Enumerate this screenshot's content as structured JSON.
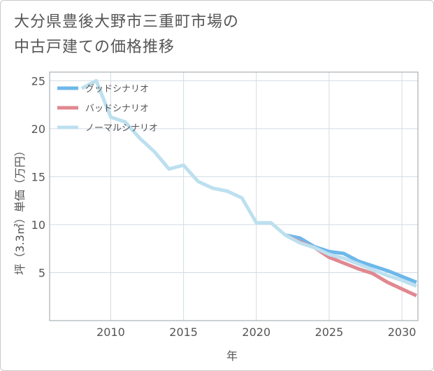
{
  "chart_data": {
    "type": "line",
    "title_lines": [
      "大分県豊後大野市三重町市場の",
      "中古戸建ての価格推移"
    ],
    "xlabel": "年",
    "ylabel": "坪（3.3㎡）単価（万円）",
    "xlim": [
      2005.8,
      2031.1
    ],
    "ylim": [
      0,
      25.9
    ],
    "xticks": [
      2010,
      2015,
      2020,
      2025,
      2030
    ],
    "yticks": [
      5,
      10,
      15,
      20,
      25
    ],
    "legend_position": "top-left",
    "series": [
      {
        "name": "グッドシナリオ",
        "color": "#6db8ea",
        "x": [
          2022,
          2023,
          2024,
          2025,
          2026,
          2027,
          2028,
          2029,
          2030,
          2031
        ],
        "y": [
          8.9,
          8.6,
          7.7,
          7.2,
          7.0,
          6.2,
          5.7,
          5.2,
          4.6,
          4.0
        ]
      },
      {
        "name": "バッドシナリオ",
        "color": "#e08890",
        "x": [
          2022,
          2023,
          2024,
          2025,
          2026,
          2027,
          2028,
          2029,
          2030,
          2031
        ],
        "y": [
          8.9,
          8.2,
          7.6,
          6.6,
          6.0,
          5.4,
          4.9,
          4.0,
          3.3,
          2.6
        ]
      },
      {
        "name": "ノーマルシナリオ",
        "color": "#bde0ef",
        "x": [
          2008,
          2009,
          2010,
          2011,
          2012,
          2013,
          2014,
          2015,
          2016,
          2017,
          2018,
          2019,
          2020,
          2021,
          2022,
          2023,
          2024,
          2025,
          2026,
          2027,
          2028,
          2029,
          2030,
          2031
        ],
        "y": [
          24.2,
          25.0,
          21.2,
          20.7,
          19.0,
          17.6,
          15.8,
          16.2,
          14.5,
          13.8,
          13.5,
          12.8,
          10.2,
          10.2,
          8.9,
          8.1,
          7.6,
          6.9,
          6.5,
          5.9,
          5.3,
          4.7,
          4.2,
          3.6
        ]
      }
    ]
  }
}
